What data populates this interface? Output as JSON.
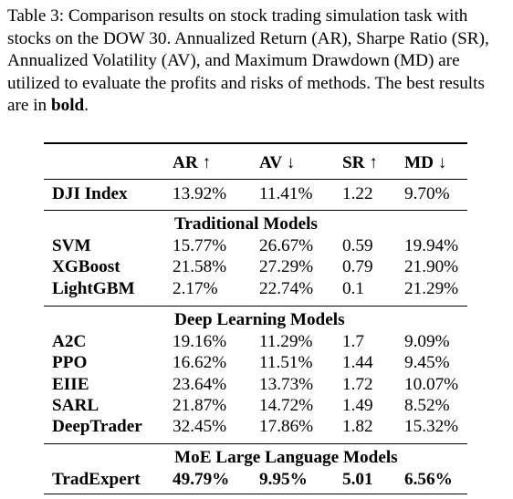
{
  "caption": {
    "label": "Table 3:",
    "text": "Comparison results on stock trading simulation task with stocks on the DOW 30. Annualized Return (AR), Sharpe Ratio (SR), Annualized Volatility (AV), and Maximum Drawdown (MD) are utilized to evaluate the profits and risks of methods. The best results are in",
    "bold_word": "bold",
    "end": "."
  },
  "table": {
    "columns": [
      "AR ↑",
      "AV ↓",
      "SR ↑",
      "MD ↓"
    ],
    "baseline": {
      "name": "DJI Index",
      "values": [
        "13.92%",
        "11.41%",
        "1.22",
        "9.70%"
      ]
    },
    "groups": [
      {
        "title": "Traditional Models",
        "rows": [
          {
            "name": "SVM",
            "values": [
              "15.77%",
              "26.67%",
              "0.59",
              "19.94%"
            ]
          },
          {
            "name": "XGBoost",
            "values": [
              "21.58%",
              "27.29%",
              "0.79",
              "21.90%"
            ]
          },
          {
            "name": "LightGBM",
            "values": [
              "2.17%",
              "22.74%",
              "0.1",
              "21.29%"
            ]
          }
        ]
      },
      {
        "title": "Deep Learning Models",
        "rows": [
          {
            "name": "A2C",
            "values": [
              "19.16%",
              "11.29%",
              "1.7",
              "9.09%"
            ]
          },
          {
            "name": "PPO",
            "values": [
              "16.62%",
              "11.51%",
              "1.44",
              "9.45%"
            ]
          },
          {
            "name": "EIIE",
            "values": [
              "23.64%",
              "13.73%",
              "1.72",
              "10.07%"
            ]
          },
          {
            "name": "SARL",
            "values": [
              "21.87%",
              "14.72%",
              "1.49",
              "8.52%"
            ]
          },
          {
            "name": "DeepTrader",
            "values": [
              "32.45%",
              "17.86%",
              "1.82",
              "15.32%"
            ]
          }
        ]
      },
      {
        "title": "MoE Large Language Models",
        "rows": [
          {
            "name": "TradExpert",
            "values": [
              "49.79%",
              "9.95%",
              "5.01",
              "6.56%"
            ],
            "best": true
          }
        ]
      }
    ]
  }
}
